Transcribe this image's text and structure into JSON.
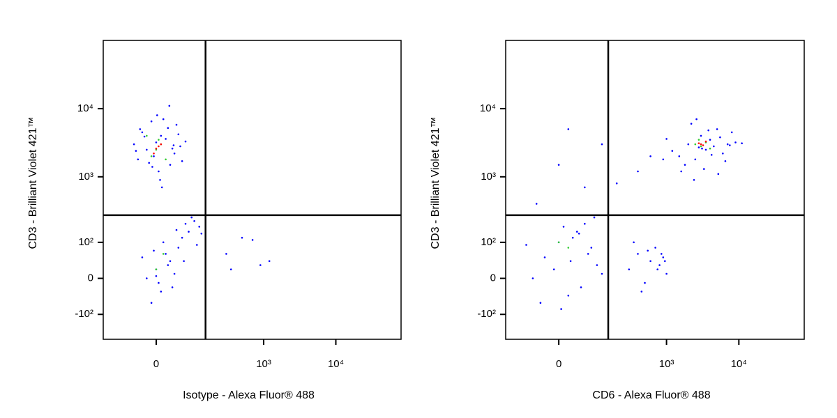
{
  "chart_data": [
    {
      "type": "scatter",
      "xlabel": "Isotype - Alexa Fluor® 488",
      "ylabel": "CD3 - Brilliant Violet 421™",
      "xscale": "biexponential",
      "yscale": "biexponential",
      "xlim": [
        -170,
        80000
      ],
      "ylim": [
        -250,
        100000
      ],
      "xticks": [
        0,
        {
          "value": 1000,
          "label": "10³"
        },
        {
          "value": 10000,
          "label": "10⁴"
        }
      ],
      "yticks": [
        {
          "value": -100,
          "label": "-10²"
        },
        0,
        {
          "value": 100,
          "label": "10²"
        },
        {
          "value": 1000,
          "label": "10³"
        },
        {
          "value": 10000,
          "label": "10⁴"
        }
      ],
      "gate_x": 150,
      "gate_y": 270,
      "series": [
        {
          "color": "#0000ff",
          "x": [
            -40,
            -20,
            0,
            10,
            25,
            40,
            -50,
            -10,
            30,
            55,
            -30,
            5,
            20,
            -5,
            45,
            60,
            -25,
            15,
            35,
            -45,
            8,
            -15,
            50,
            70,
            -35,
            12,
            28,
            -8,
            38,
            2,
            -20,
            0,
            10,
            30,
            50,
            80,
            100,
            120,
            -10,
            20,
            40,
            60,
            90,
            5,
            25,
            -30,
            15,
            70,
            110,
            35,
            -5,
            45,
            130,
            65,
            0,
            300,
            500,
            900,
            1200,
            350,
            700
          ],
          "y": [
            1800,
            2500,
            3200,
            4000,
            5200,
            2200,
            3000,
            6500,
            1500,
            2800,
            4500,
            1200,
            3600,
            2000,
            5800,
            1700,
            3900,
            7000,
            2600,
            2400,
            900,
            1600,
            4200,
            3300,
            5000,
            700,
            11000,
            1400,
            2900,
            8000,
            0,
            20,
            -30,
            40,
            80,
            150,
            220,
            180,
            -60,
            60,
            10,
            120,
            250,
            -10,
            30,
            50,
            100,
            200,
            90,
            -20,
            70,
            160,
            140,
            40,
            5,
            60,
            120,
            30,
            40,
            20,
            110
          ]
        },
        {
          "color": "#33cc33",
          "x": [
            0,
            10,
            -10,
            20,
            5,
            -20,
            15,
            0
          ],
          "y": [
            2500,
            3000,
            2000,
            1800,
            3500,
            4000,
            60,
            20
          ]
        },
        {
          "color": "#ff0000",
          "x": [
            0,
            10,
            -5,
            5
          ],
          "y": [
            2600,
            3000,
            2200,
            2800
          ]
        }
      ]
    },
    {
      "type": "scatter",
      "xlabel": "CD6 - Alexa Fluor® 488",
      "ylabel": "CD3 - Brilliant Violet 421™",
      "xscale": "biexponential",
      "yscale": "biexponential",
      "xlim": [
        -170,
        80000
      ],
      "ylim": [
        -250,
        100000
      ],
      "xticks": [
        0,
        {
          "value": 1000,
          "label": "10³"
        },
        {
          "value": 10000,
          "label": "10⁴"
        }
      ],
      "yticks": [
        {
          "value": -100,
          "label": "-10²"
        },
        0,
        {
          "value": 100,
          "label": "10²"
        },
        {
          "value": 1000,
          "label": "10³"
        },
        {
          "value": 10000,
          "label": "10⁴"
        }
      ],
      "gate_x": 150,
      "gate_y": 270,
      "series": [
        {
          "color": "#0000ff",
          "x": [
            1500,
            2000,
            2500,
            3000,
            3500,
            4000,
            5000,
            6000,
            7000,
            8000,
            1800,
            2200,
            2800,
            3300,
            4500,
            5500,
            6500,
            9000,
            1200,
            1000,
            2400,
            3800,
            4200,
            2600,
            3100,
            1600,
            7500,
            11000,
            900,
            5200,
            -60,
            -30,
            0,
            20,
            40,
            60,
            80,
            100,
            -40,
            -10,
            10,
            30,
            50,
            70,
            90,
            -80,
            120,
            5,
            25,
            45,
            300,
            400,
            500,
            600,
            700,
            800,
            900,
            1000,
            350,
            450,
            550,
            750,
            850,
            950,
            -50,
            0,
            60,
            200,
            400,
            600,
            120,
            20
          ],
          "y": [
            2000,
            3000,
            1800,
            4000,
            2500,
            3500,
            5000,
            2200,
            3000,
            4500,
            1500,
            6000,
            2700,
            1300,
            2800,
            3800,
            1700,
            3200,
            2400,
            3600,
            900,
            4800,
            2100,
            7000,
            2600,
            1200,
            2900,
            3100,
            1800,
            1100,
            0,
            50,
            100,
            -40,
            150,
            200,
            80,
            30,
            -60,
            20,
            180,
            120,
            -20,
            60,
            250,
            90,
            10,
            -80,
            40,
            140,
            20,
            60,
            -10,
            40,
            80,
            30,
            50,
            10,
            100,
            -30,
            70,
            20,
            60,
            40,
            400,
            1500,
            700,
            800,
            1200,
            2000,
            3000,
            5000
          ]
        },
        {
          "color": "#33cc33",
          "x": [
            2500,
            3000,
            3500,
            2800,
            4000,
            0,
            20
          ],
          "y": [
            3000,
            2800,
            3200,
            3500,
            2600,
            100,
            80
          ]
        },
        {
          "color": "#ff0000",
          "x": [
            3000,
            3200,
            2800,
            3500
          ],
          "y": [
            3000,
            2900,
            3100,
            3300
          ]
        }
      ]
    }
  ]
}
